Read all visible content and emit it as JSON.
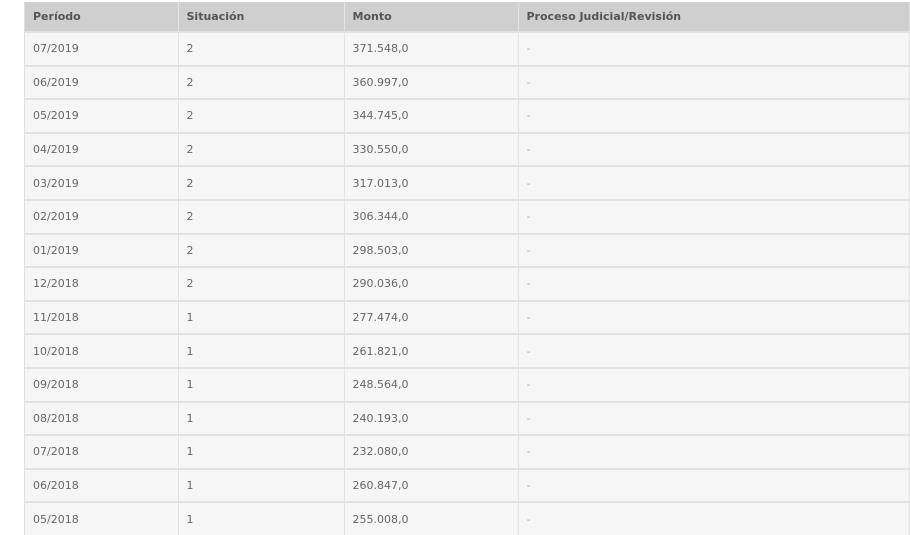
{
  "table": {
    "headers": [
      "Período",
      "Situación",
      "Monto",
      "Proceso Judicial/Revisión"
    ],
    "rows": [
      [
        "07/2019",
        "2",
        "371.548,0",
        "-"
      ],
      [
        "06/2019",
        "2",
        "360.997,0",
        "-"
      ],
      [
        "05/2019",
        "2",
        "344.745,0",
        "-"
      ],
      [
        "04/2019",
        "2",
        "330.550,0",
        "-"
      ],
      [
        "03/2019",
        "2",
        "317.013,0",
        "-"
      ],
      [
        "02/2019",
        "2",
        "306.344,0",
        "-"
      ],
      [
        "01/2019",
        "2",
        "298.503,0",
        "-"
      ],
      [
        "12/2018",
        "2",
        "290.036,0",
        "-"
      ],
      [
        "11/2018",
        "1",
        "277.474,0",
        "-"
      ],
      [
        "10/2018",
        "1",
        "261.821,0",
        "-"
      ],
      [
        "09/2018",
        "1",
        "248.564,0",
        "-"
      ],
      [
        "08/2018",
        "1",
        "240.193,0",
        "-"
      ],
      [
        "07/2018",
        "1",
        "232.080,0",
        "-"
      ],
      [
        "06/2018",
        "1",
        "260.847,0",
        "-"
      ],
      [
        "05/2018",
        "1",
        "255.008,0",
        "-"
      ]
    ]
  }
}
